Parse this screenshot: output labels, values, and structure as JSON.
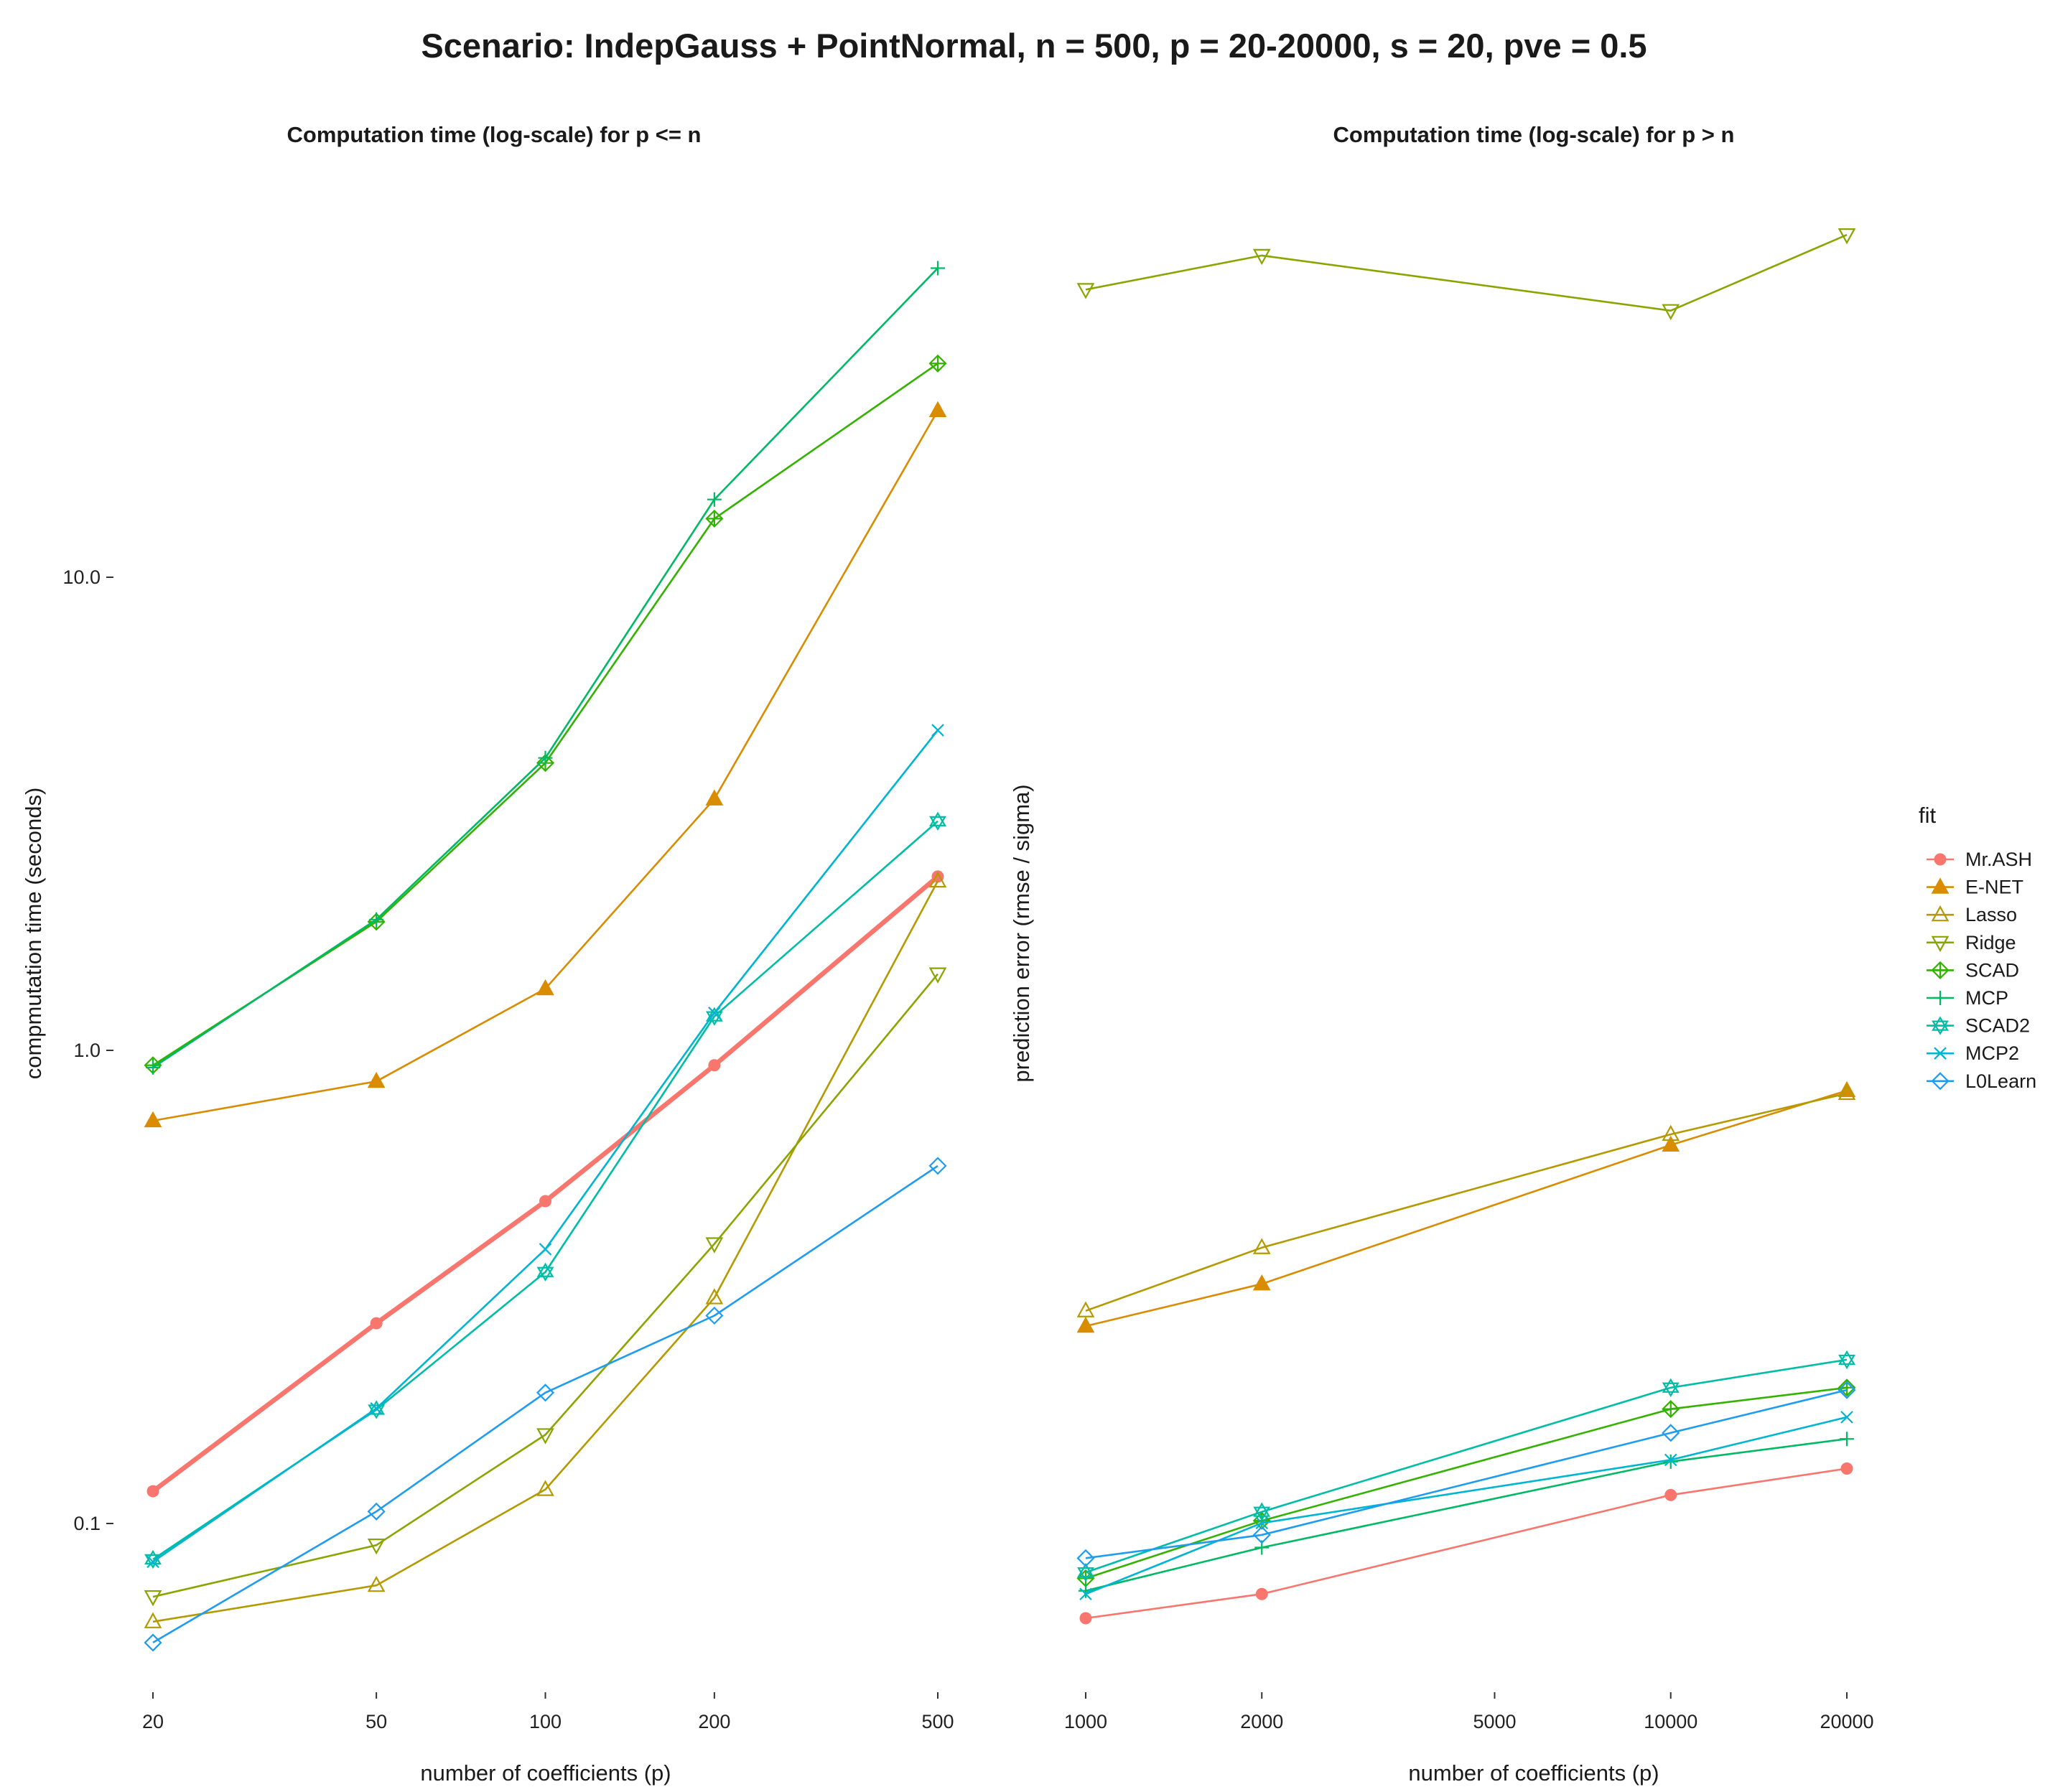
{
  "title": "Scenario: IndepGauss + PointNormal, n = 500, p = 20-20000, s = 20, pve = 0.5",
  "legend": {
    "title": "fit",
    "items": [
      {
        "name": "Mr.ASH",
        "color": "#F8766D",
        "marker": "filled-circle"
      },
      {
        "name": "E-NET",
        "color": "#D98C00",
        "marker": "filled-triangle"
      },
      {
        "name": "Lasso",
        "color": "#B49A00",
        "marker": "open-triangle"
      },
      {
        "name": "Ridge",
        "color": "#89A600",
        "marker": "open-triangle-down"
      },
      {
        "name": "SCAD",
        "color": "#33B200",
        "marker": "circle-plus"
      },
      {
        "name": "MCP",
        "color": "#00B964",
        "marker": "plus"
      },
      {
        "name": "SCAD2",
        "color": "#00BDA5",
        "marker": "star-of-david"
      },
      {
        "name": "MCP2",
        "color": "#00B5D2",
        "marker": "cross"
      },
      {
        "name": "L0Learn",
        "color": "#1E9CF0",
        "marker": "open-diamond"
      }
    ]
  },
  "chart_data": [
    {
      "type": "line",
      "title": "Computation time (log-scale) for p <= n",
      "xlabel": "number of coefficients (p)",
      "ylabel": "compmutation time (seconds)",
      "xscale": "log",
      "yscale": "log",
      "x": [
        20,
        50,
        100,
        200,
        500
      ],
      "x_ticks": [
        "20",
        "50",
        "100",
        "200",
        "500"
      ],
      "y_ticks": [
        "0.1",
        "1.0",
        "10.0"
      ],
      "grid": false,
      "legend_position": "right",
      "series": [
        {
          "name": "Mr.ASH",
          "values": [
            0.117,
            0.265,
            0.48,
            0.93,
            2.33
          ]
        },
        {
          "name": "E-NET",
          "values": [
            0.71,
            0.86,
            1.35,
            3.4,
            22.5
          ]
        },
        {
          "name": "Lasso",
          "values": [
            0.062,
            0.074,
            0.118,
            0.3,
            2.28
          ]
        },
        {
          "name": "Ridge",
          "values": [
            0.07,
            0.09,
            0.154,
            0.39,
            1.45
          ]
        },
        {
          "name": "SCAD",
          "values": [
            0.93,
            1.87,
            4.05,
            13.3,
            28.3
          ]
        },
        {
          "name": "MCP",
          "values": [
            0.92,
            1.89,
            4.15,
            14.6,
            45.0
          ]
        },
        {
          "name": "SCAD2",
          "values": [
            0.084,
            0.174,
            0.34,
            1.18,
            3.05
          ]
        },
        {
          "name": "MCP2",
          "values": [
            0.083,
            0.175,
            0.38,
            1.2,
            4.75
          ]
        },
        {
          "name": "L0Learn",
          "values": [
            0.056,
            0.106,
            0.189,
            0.275,
            0.57
          ]
        }
      ]
    },
    {
      "type": "line",
      "title": "Computation time (log-scale) for p > n",
      "xlabel": "number of coefficients (p)",
      "ylabel": "prediction error (rmse / sigma)",
      "xscale": "log",
      "yscale": "log",
      "x": [
        1000,
        2000,
        10000,
        20000
      ],
      "x_ticks": [
        "1000",
        "2000",
        "5000",
        "10000",
        "20000"
      ],
      "y_ticks": [],
      "grid": false,
      "series": [
        {
          "name": "Mr.ASH",
          "values": [
            0.056,
            0.063,
            0.102,
            0.116
          ]
        },
        {
          "name": "E-NET",
          "values": [
            0.232,
            0.285,
            0.56,
            0.73
          ]
        },
        {
          "name": "Lasso",
          "values": [
            0.25,
            0.34,
            0.59,
            0.72
          ]
        },
        {
          "name": "Ridge",
          "values": [
            36.0,
            42.5,
            32.5,
            47.0
          ]
        },
        {
          "name": "SCAD",
          "values": [
            0.068,
            0.09,
            0.155,
            0.172
          ]
        },
        {
          "name": "MCP",
          "values": [
            0.064,
            0.079,
            0.12,
            0.134
          ]
        },
        {
          "name": "SCAD2",
          "values": [
            0.07,
            0.094,
            0.172,
            0.197
          ]
        },
        {
          "name": "MCP2",
          "values": [
            0.063,
            0.089,
            0.121,
            0.149
          ]
        },
        {
          "name": "L0Learn",
          "values": [
            0.075,
            0.084,
            0.138,
            0.17
          ]
        }
      ]
    }
  ]
}
